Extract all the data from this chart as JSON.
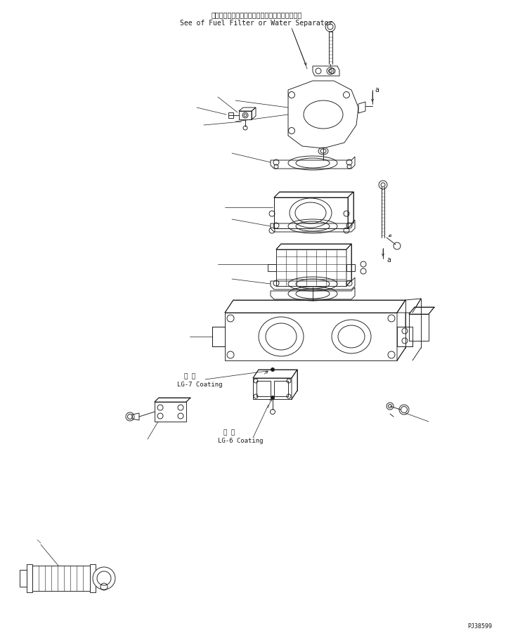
{
  "bg_color": "#ffffff",
  "line_color": "#1a1a1a",
  "title_jp": "フェエルフィルタまたはウォータセパレータ参照",
  "title_en": "See of Fuel Filter or Water Separator",
  "label_lg7_jp": "塗 布",
  "label_lg7_en": "LG-7 Coating",
  "label_lg6_jp": "塗 布",
  "label_lg6_en": "LG-6 Coating",
  "part_number": "PJ38599",
  "fig_width": 7.3,
  "fig_height": 9.08,
  "dpi": 100
}
